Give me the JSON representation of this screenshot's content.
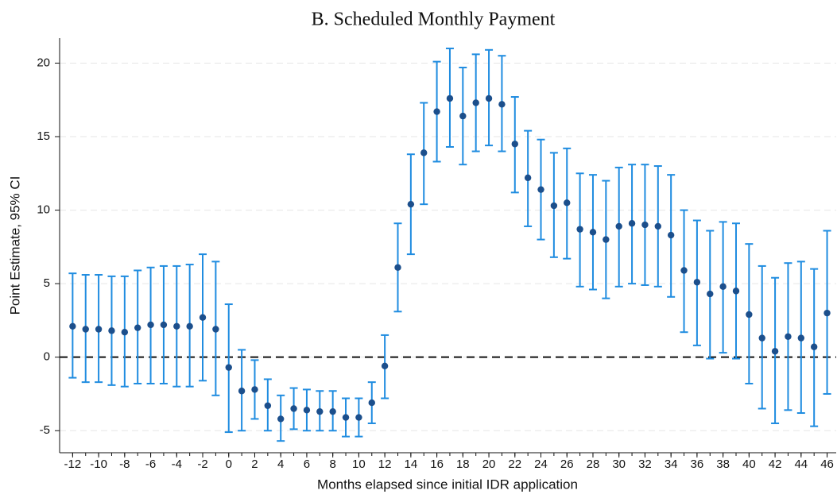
{
  "chart_data": {
    "type": "errorbar",
    "title": "B. Scheduled Monthly Payment",
    "xlabel": "Months elapsed since initial IDR application",
    "ylabel": "Point Estimate, 95% CI",
    "x": [
      -12,
      -11,
      -10,
      -9,
      -8,
      -7,
      -6,
      -5,
      -4,
      -3,
      -2,
      -1,
      0,
      1,
      2,
      3,
      4,
      5,
      6,
      7,
      8,
      9,
      10,
      11,
      12,
      13,
      14,
      15,
      16,
      17,
      18,
      19,
      20,
      21,
      22,
      23,
      24,
      25,
      26,
      27,
      28,
      29,
      30,
      31,
      32,
      33,
      34,
      35,
      36,
      37,
      38,
      39,
      40,
      41,
      42,
      43,
      44,
      45,
      46
    ],
    "values": [
      2.1,
      1.9,
      1.9,
      1.8,
      1.7,
      2.0,
      2.2,
      2.2,
      2.1,
      2.1,
      2.7,
      1.9,
      -0.7,
      -2.3,
      -2.2,
      -3.3,
      -4.2,
      -3.5,
      -3.6,
      -3.7,
      -3.7,
      -4.1,
      -4.1,
      -3.1,
      -0.6,
      6.1,
      10.4,
      13.9,
      16.7,
      17.6,
      16.4,
      17.3,
      17.6,
      17.2,
      14.5,
      12.2,
      11.4,
      10.3,
      10.5,
      8.7,
      8.5,
      8.0,
      8.9,
      9.1,
      9.0,
      8.9,
      8.3,
      5.9,
      5.1,
      4.3,
      4.8,
      4.5,
      2.9,
      1.3,
      0.4,
      1.4,
      1.3,
      0.7,
      3.0
    ],
    "ci_low": [
      -1.4,
      -1.7,
      -1.7,
      -1.9,
      -2.0,
      -1.8,
      -1.8,
      -1.8,
      -2.0,
      -2.0,
      -1.6,
      -2.6,
      -5.1,
      -5.0,
      -4.2,
      -5.0,
      -5.7,
      -4.9,
      -5.0,
      -5.0,
      -5.0,
      -5.4,
      -5.4,
      -4.5,
      -2.8,
      3.1,
      7.0,
      10.4,
      13.3,
      14.3,
      13.1,
      14.0,
      14.4,
      14.0,
      11.2,
      8.9,
      8.0,
      6.8,
      6.7,
      4.8,
      4.6,
      4.0,
      4.8,
      5.0,
      4.9,
      4.8,
      4.1,
      1.7,
      0.8,
      -0.1,
      0.3,
      -0.1,
      -1.8,
      -3.5,
      -4.5,
      -3.6,
      -3.8,
      -4.7,
      -2.5
    ],
    "ci_high": [
      5.7,
      5.6,
      5.6,
      5.5,
      5.5,
      5.9,
      6.1,
      6.2,
      6.2,
      6.3,
      7.0,
      6.5,
      3.6,
      0.5,
      -0.2,
      -1.5,
      -2.6,
      -2.1,
      -2.2,
      -2.3,
      -2.3,
      -2.8,
      -2.8,
      -1.7,
      1.5,
      9.1,
      13.8,
      17.3,
      20.1,
      21.0,
      19.7,
      20.6,
      20.9,
      20.5,
      17.7,
      15.4,
      14.8,
      13.9,
      14.2,
      12.5,
      12.4,
      12.0,
      12.9,
      13.1,
      13.1,
      13.0,
      12.4,
      10.0,
      9.3,
      8.6,
      9.2,
      9.1,
      7.7,
      6.2,
      5.4,
      6.4,
      6.5,
      6.0,
      8.6
    ],
    "color": "#1c4f8c",
    "ci_color": "#1f8ce0",
    "hline": 0,
    "xlim": [
      -13,
      46.7
    ],
    "ylim": [
      -6.5,
      21.7
    ],
    "xticks": [
      -12,
      -10,
      -8,
      -6,
      -4,
      -2,
      0,
      2,
      4,
      6,
      8,
      10,
      12,
      14,
      16,
      18,
      20,
      22,
      24,
      26,
      28,
      30,
      32,
      34,
      36,
      38,
      40,
      42,
      44,
      46
    ],
    "yticks": [
      -5,
      0,
      5,
      10,
      15,
      20
    ],
    "grid": true
  }
}
